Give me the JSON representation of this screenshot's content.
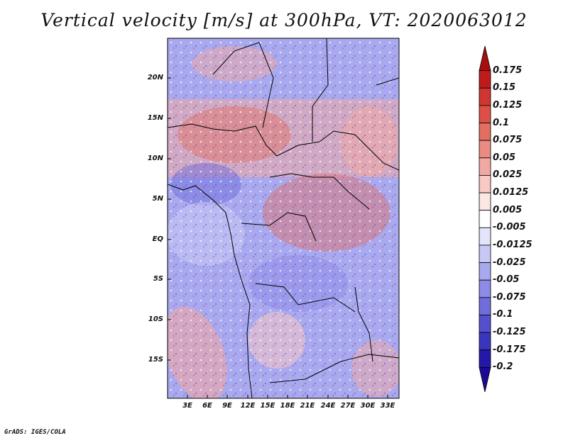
{
  "title": "Vertical velocity [m/s] at 300hPa, VT: 2020063012",
  "map": {
    "y_ticks": [
      "20N",
      "15N",
      "10N",
      "5N",
      "EQ",
      "5S",
      "10S",
      "15S"
    ],
    "x_ticks": [
      "3E",
      "6E",
      "9E",
      "12E",
      "15E",
      "18E",
      "21E",
      "24E",
      "27E",
      "30E",
      "33E"
    ]
  },
  "colorbar": {
    "levels": [
      "0.175",
      "0.15",
      "0.125",
      "0.1",
      "0.075",
      "0.05",
      "0.025",
      "0.0125",
      "0.005",
      "-0.005",
      "-0.0125",
      "-0.025",
      "-0.05",
      "-0.075",
      "-0.1",
      "-0.125",
      "-0.175",
      "-0.2"
    ],
    "colors": [
      "#a80d10",
      "#c11a1d",
      "#d0352f",
      "#dc5047",
      "#e36e62",
      "#ea8c83",
      "#f1a9a3",
      "#f8c9c5",
      "#fce7e4",
      "#ffffff",
      "#e4e4fb",
      "#c8c8f6",
      "#a9a9f0",
      "#8d8be7",
      "#706ddb",
      "#5450cd",
      "#3a35bd",
      "#2418a8",
      "#1b0a98"
    ]
  },
  "footer": "GrADS: IGES/COLA"
}
